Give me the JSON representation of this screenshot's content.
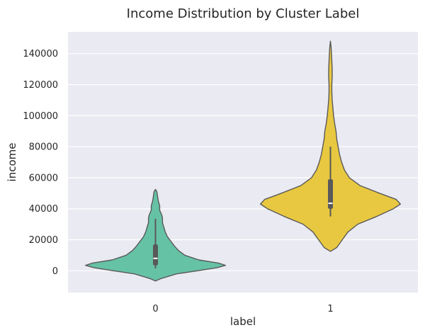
{
  "chart_data": {
    "type": "violin",
    "title": "Income Distribution by Cluster Label",
    "xlabel": "label",
    "ylabel": "income",
    "categories": [
      "0",
      "1"
    ],
    "ylim": [
      -14000,
      154000
    ],
    "yticks": [
      0,
      20000,
      40000,
      60000,
      80000,
      100000,
      120000,
      140000
    ],
    "grid": true,
    "series": [
      {
        "label": "0",
        "color": "#66c2a5",
        "box": {
          "whisker_low": 1500,
          "q1": 3500,
          "median": 8000,
          "q3": 17000,
          "whisker_high": 33500
        },
        "density": [
          [
            -6600,
            0.0
          ],
          [
            -5000,
            0.08
          ],
          [
            -2000,
            0.3
          ],
          [
            0,
            0.6
          ],
          [
            2000,
            0.88
          ],
          [
            3500,
            1.0
          ],
          [
            5000,
            0.9
          ],
          [
            7000,
            0.62
          ],
          [
            10000,
            0.42
          ],
          [
            13000,
            0.33
          ],
          [
            16000,
            0.27
          ],
          [
            19000,
            0.22
          ],
          [
            22000,
            0.17
          ],
          [
            25000,
            0.14
          ],
          [
            28000,
            0.12
          ],
          [
            31000,
            0.1
          ],
          [
            34000,
            0.1
          ],
          [
            36000,
            0.09
          ],
          [
            39000,
            0.06
          ],
          [
            42000,
            0.06
          ],
          [
            45000,
            0.04
          ],
          [
            48000,
            0.03
          ],
          [
            51000,
            0.02
          ],
          [
            52500,
            0.0
          ]
        ]
      },
      {
        "label": "1",
        "color": "#e8c840",
        "box": {
          "whisker_low": 35000,
          "q1": 40000,
          "median": 43500,
          "q3": 59000,
          "whisker_high": 80000
        },
        "density": [
          [
            12500,
            0.0
          ],
          [
            15000,
            0.09
          ],
          [
            20000,
            0.17
          ],
          [
            25000,
            0.25
          ],
          [
            30000,
            0.39
          ],
          [
            35000,
            0.66
          ],
          [
            40000,
            0.9
          ],
          [
            43000,
            1.0
          ],
          [
            46000,
            0.94
          ],
          [
            50000,
            0.7
          ],
          [
            55000,
            0.42
          ],
          [
            60000,
            0.27
          ],
          [
            65000,
            0.2
          ],
          [
            70000,
            0.16
          ],
          [
            75000,
            0.13
          ],
          [
            80000,
            0.11
          ],
          [
            85000,
            0.09
          ],
          [
            90000,
            0.08
          ],
          [
            95000,
            0.06
          ],
          [
            100000,
            0.045
          ],
          [
            105000,
            0.035
          ],
          [
            110000,
            0.025
          ],
          [
            115000,
            0.02
          ],
          [
            120000,
            0.02
          ],
          [
            125000,
            0.025
          ],
          [
            130000,
            0.025
          ],
          [
            135000,
            0.02
          ],
          [
            140000,
            0.015
          ],
          [
            145000,
            0.008
          ],
          [
            148000,
            0.0
          ]
        ]
      }
    ]
  }
}
